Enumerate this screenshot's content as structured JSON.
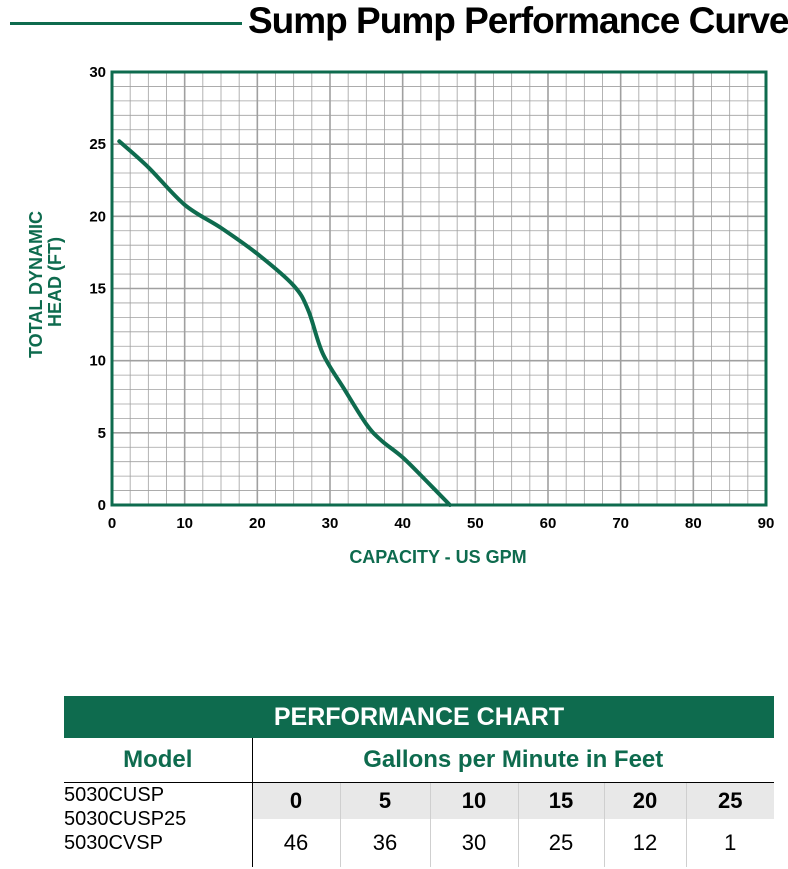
{
  "title": "Sump Pump Performance Curve",
  "colors": {
    "brand_green": "#0e6b4e",
    "grid": "#a0a0a0",
    "axis_text": "#000000"
  },
  "chart_data": {
    "type": "line",
    "title": "Sump Pump Performance Curve",
    "xlabel": "CAPACITY - US GPM",
    "ylabel_lines": [
      "TOTAL DYNAMIC",
      "HEAD (FT)"
    ],
    "xlim": [
      0,
      90
    ],
    "ylim": [
      0,
      30
    ],
    "x_ticks": [
      0,
      10,
      20,
      30,
      40,
      50,
      60,
      70,
      80,
      90
    ],
    "y_ticks": [
      0,
      5,
      10,
      15,
      20,
      25,
      30
    ],
    "grid": true,
    "series": [
      {
        "x": [
          1,
          5,
          10,
          15,
          20,
          25,
          27,
          29,
          32,
          35,
          37,
          40,
          43,
          46.5
        ],
        "y": [
          25.2,
          23.4,
          20.8,
          19.2,
          17.4,
          15.2,
          13.5,
          10.5,
          8.0,
          5.6,
          4.5,
          3.3,
          1.8,
          0
        ]
      }
    ]
  },
  "table": {
    "banner": "PERFORMANCE CHART",
    "model_header": "Model",
    "gpm_header": "Gallons per Minute in Feet",
    "models": [
      "5030CUSP",
      "5030CUSP25",
      "5030CVSP"
    ],
    "gpm": [
      "0",
      "5",
      "10",
      "15",
      "20",
      "25"
    ],
    "feet": [
      "46",
      "36",
      "30",
      "25",
      "12",
      "1"
    ]
  }
}
